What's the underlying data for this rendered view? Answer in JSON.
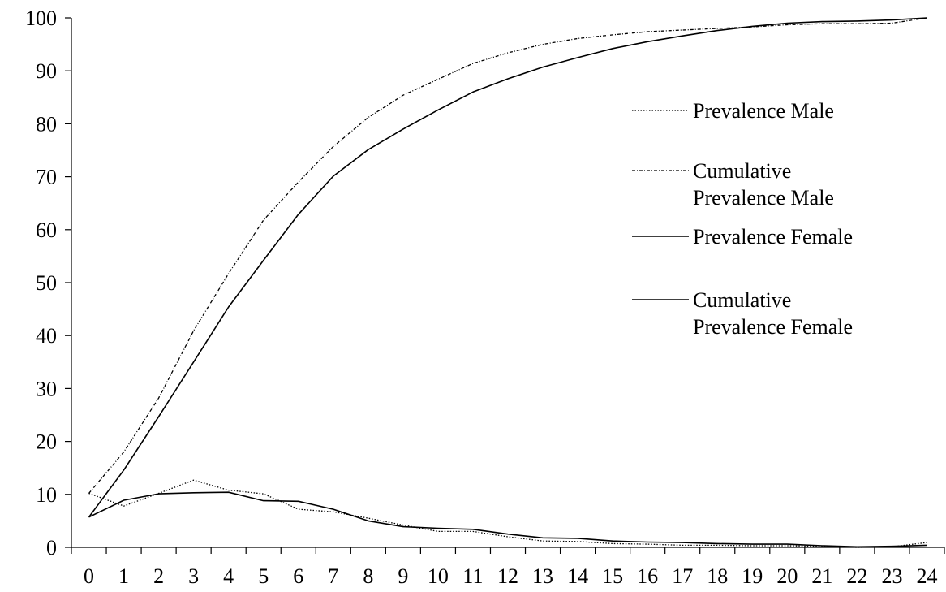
{
  "chart_data": {
    "type": "line",
    "title": "",
    "xlabel": "",
    "ylabel": "",
    "x": [
      0,
      1,
      2,
      3,
      4,
      5,
      6,
      7,
      8,
      9,
      10,
      11,
      12,
      13,
      14,
      15,
      16,
      17,
      18,
      19,
      20,
      21,
      22,
      23,
      24
    ],
    "xlim": [
      0,
      24
    ],
    "ylim": [
      0,
      100
    ],
    "y_ticks": [
      0,
      10,
      20,
      30,
      40,
      50,
      60,
      70,
      80,
      90,
      100
    ],
    "grid": false,
    "legend_position": "right",
    "series": [
      {
        "name": "Prevalence Male",
        "style": "dotted",
        "color": "#000000",
        "values": [
          10.2,
          7.8,
          10.2,
          12.7,
          10.8,
          10.1,
          7.2,
          6.7,
          5.5,
          4.2,
          3.0,
          3.0,
          2.0,
          1.2,
          1.1,
          0.7,
          0.6,
          0.4,
          0.4,
          0.3,
          0.3,
          0.2,
          0.0,
          0.1,
          0.9
        ]
      },
      {
        "name": "Cumulative Prevalence Male",
        "style": "dash-dot",
        "color": "#000000",
        "values": [
          10.2,
          18.0,
          28.2,
          40.9,
          51.7,
          61.8,
          69.0,
          75.7,
          81.2,
          85.4,
          88.4,
          91.4,
          93.4,
          95.0,
          96.1,
          96.8,
          97.4,
          97.7,
          98.0,
          98.3,
          98.7,
          98.9,
          98.9,
          99.0,
          100.0
        ]
      },
      {
        "name": "Prevalence Female",
        "style": "solid",
        "color": "#000000",
        "values": [
          5.7,
          8.9,
          10.1,
          10.3,
          10.4,
          8.8,
          8.7,
          7.2,
          5.0,
          3.9,
          3.6,
          3.4,
          2.5,
          1.8,
          1.7,
          1.2,
          1.0,
          0.9,
          0.7,
          0.6,
          0.6,
          0.3,
          0.1,
          0.2,
          0.4
        ]
      },
      {
        "name": "Cumulative Prevalence Female",
        "style": "solid",
        "color": "#000000",
        "values": [
          5.7,
          14.6,
          24.7,
          35.0,
          45.4,
          54.2,
          62.9,
          70.1,
          75.1,
          79.0,
          82.6,
          86.0,
          88.5,
          90.7,
          92.5,
          94.2,
          95.5,
          96.6,
          97.6,
          98.4,
          99.0,
          99.3,
          99.4,
          99.6,
          100.0
        ]
      }
    ],
    "legend": [
      {
        "lines": [
          "Prevalence Male"
        ],
        "style": "dotted"
      },
      {
        "lines": [
          "Cumulative",
          "Prevalence Male"
        ],
        "style": "dash-dot"
      },
      {
        "lines": [
          "Prevalence Female"
        ],
        "style": "solid"
      },
      {
        "lines": [
          "Cumulative",
          "Prevalence Female"
        ],
        "style": "solid"
      }
    ]
  }
}
